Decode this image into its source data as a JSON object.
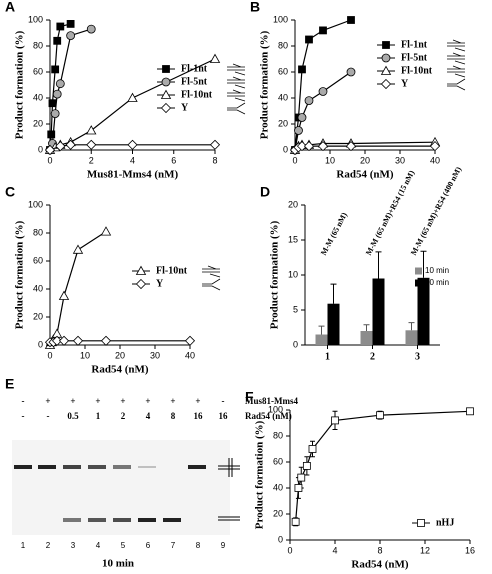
{
  "chart_data": [
    {
      "type": "line",
      "label": "A",
      "xlabel": "Mus81-Mms4 (nM)",
      "ylabel": "Product formation (%)",
      "xlim": [
        0,
        8
      ],
      "xticks": [
        0,
        2,
        4,
        6,
        8
      ],
      "ylim": [
        0,
        100
      ],
      "yticks": [
        0,
        20,
        40,
        60,
        80,
        100
      ],
      "legend": "center right",
      "series": [
        {
          "name": "Fl-1nt",
          "color": "#000000",
          "marker": "square",
          "x": [
            0,
            0.06,
            0.12,
            0.25,
            0.35,
            0.5,
            1
          ],
          "values": [
            0,
            12,
            36,
            62,
            84,
            95,
            97
          ]
        },
        {
          "name": "Fl-5nt",
          "color": "#aaaaaa",
          "marker": "circle",
          "x": [
            0,
            0.12,
            0.25,
            0.35,
            0.5,
            1,
            2
          ],
          "values": [
            0,
            5,
            28,
            43,
            51,
            88,
            93
          ]
        },
        {
          "name": "Fl-10nt",
          "color": "#ffffff",
          "marker": "triangle",
          "x": [
            0,
            0.25,
            0.5,
            1,
            2,
            4,
            8
          ],
          "values": [
            0,
            2,
            4,
            6,
            15,
            40,
            70
          ]
        },
        {
          "name": "Y",
          "color": "#ffffff",
          "marker": "diamond",
          "x": [
            0,
            0.5,
            1,
            2,
            4,
            8
          ],
          "values": [
            0,
            3,
            4,
            4,
            4,
            4
          ]
        }
      ]
    },
    {
      "type": "line",
      "label": "B",
      "xlabel": "Rad54 (nM)",
      "ylabel": "Product formation (%)",
      "xlim": [
        0,
        40
      ],
      "xticks": [
        0,
        10,
        20,
        30,
        40
      ],
      "ylim": [
        0,
        100
      ],
      "yticks": [
        0,
        20,
        40,
        60,
        80,
        100
      ],
      "legend": "upper right",
      "series": [
        {
          "name": "Fl-1nt",
          "color": "#000000",
          "marker": "square",
          "x": [
            0,
            1,
            2,
            4,
            8,
            16
          ],
          "values": [
            0,
            25,
            62,
            85,
            92,
            100
          ]
        },
        {
          "name": "Fl-5nt",
          "color": "#aaaaaa",
          "marker": "circle",
          "x": [
            0,
            1,
            2,
            4,
            8,
            16
          ],
          "values": [
            0,
            15,
            25,
            38,
            45,
            60
          ]
        },
        {
          "name": "Fl-10nt",
          "color": "#ffffff",
          "marker": "triangle",
          "x": [
            0,
            1,
            2,
            4,
            8,
            16,
            40
          ],
          "values": [
            0,
            3,
            4,
            4,
            5,
            5,
            6
          ]
        },
        {
          "name": "Y",
          "color": "#ffffff",
          "marker": "diamond",
          "x": [
            0,
            1,
            2,
            4,
            8,
            16,
            40
          ],
          "values": [
            0,
            2,
            3,
            3,
            3,
            3,
            3
          ]
        }
      ]
    },
    {
      "type": "line",
      "label": "C",
      "xlabel": "Rad54 (nM)",
      "ylabel": "Product formation (%)",
      "xlim": [
        0,
        40
      ],
      "xticks": [
        0,
        10,
        20,
        30,
        40
      ],
      "ylim": [
        0,
        100
      ],
      "yticks": [
        0,
        20,
        40,
        60,
        80,
        100
      ],
      "legend": "center right",
      "series": [
        {
          "name": "Fl-10nt",
          "color": "#ffffff",
          "marker": "triangle",
          "x": [
            0,
            0.5,
            1,
            2,
            4,
            8,
            16
          ],
          "values": [
            0,
            2,
            4,
            8,
            35,
            68,
            81
          ]
        },
        {
          "name": "Y",
          "color": "#ffffff",
          "marker": "diamond",
          "x": [
            0,
            1,
            2,
            4,
            8,
            16,
            40
          ],
          "values": [
            2,
            2,
            3,
            3,
            3,
            3,
            3
          ]
        }
      ]
    },
    {
      "type": "bar",
      "label": "D",
      "ylabel": "Product formation (%)",
      "categories": [
        "1",
        "2",
        "3"
      ],
      "annotations": [
        "M-M (65 nM)",
        "M-M (65 nM)+R54 (15 nM)",
        "M-M (65 nM)+R54 (400 nM)"
      ],
      "ylim": [
        0,
        20
      ],
      "yticks": [
        0,
        5,
        10,
        15,
        20
      ],
      "legend": "center right",
      "series": [
        {
          "name": "10 min",
          "color": "#8c8c8c",
          "values": [
            1.5,
            2,
            2.1
          ],
          "errors": [
            1.2,
            0.9,
            1.1
          ]
        },
        {
          "name": "30 min",
          "color": "#000000",
          "values": [
            5.9,
            9.5,
            9.6
          ],
          "errors": [
            2.8,
            3.8,
            3.8
          ]
        }
      ]
    },
    {
      "type": "line",
      "label": "F",
      "xlabel": "Rad54 (nM)",
      "ylabel": "Product formation (%)",
      "xlim": [
        0,
        16
      ],
      "xticks": [
        0,
        4,
        8,
        12,
        16
      ],
      "ylim": [
        0,
        100
      ],
      "yticks": [
        0,
        20,
        40,
        60,
        80,
        100
      ],
      "legend": "lower right",
      "series": [
        {
          "name": "nHJ",
          "color": "#ffffff",
          "marker": "square",
          "x": [
            0.5,
            0.75,
            1,
            1.5,
            2,
            4,
            8,
            16
          ],
          "values": [
            14,
            40,
            48,
            57,
            70,
            92,
            96,
            99
          ],
          "errors": [
            3,
            8,
            8,
            7,
            6,
            7,
            3,
            2
          ]
        }
      ]
    }
  ],
  "gel": {
    "label": "E",
    "caption": "10 min",
    "rows": [
      {
        "name": "Mus81-Mms4",
        "lanes": [
          "-",
          "+",
          "+",
          "+",
          "+",
          "+",
          "+",
          "+",
          "-"
        ]
      },
      {
        "name": "Rad54 (nM)",
        "lanes": [
          "-",
          "-",
          "0.5",
          "1",
          "2",
          "4",
          "8",
          "16",
          "16"
        ]
      }
    ],
    "lane_numbers": [
      1,
      2,
      3,
      4,
      5,
      6,
      7,
      8,
      9
    ]
  }
}
